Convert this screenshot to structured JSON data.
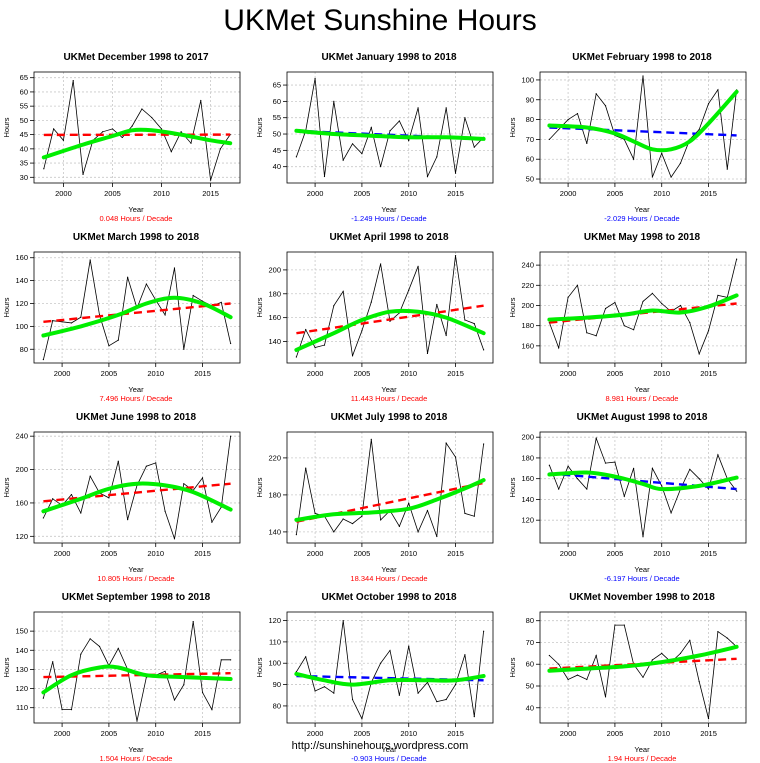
{
  "page_title": "UKMet Sunshine Hours",
  "footer_url": "http://sunshinehours.wordpress.com",
  "colors": {
    "data_line": "#000000",
    "trend_up": "#ff0000",
    "trend_down": "#0000ff",
    "smooth": "#00ee00",
    "grid": "#c8c8c8"
  },
  "chart_data": [
    {
      "type": "line",
      "title": "UKMet December 1998 to 2017",
      "xlabel": "Year",
      "ylabel": "Hours",
      "trend_label": "0.048 Hours / Decade",
      "trend_direction": "up",
      "xlim": [
        1997,
        2018
      ],
      "xticks": [
        2000,
        2005,
        2010,
        2015
      ],
      "ylim": [
        28,
        67
      ],
      "yticks": [
        30,
        35,
        40,
        45,
        50,
        55,
        60,
        65
      ],
      "x": [
        1998,
        1999,
        2000,
        2001,
        2002,
        2003,
        2004,
        2005,
        2006,
        2007,
        2008,
        2009,
        2010,
        2011,
        2012,
        2013,
        2014,
        2015,
        2016,
        2017
      ],
      "values": [
        33,
        47,
        43,
        64,
        31,
        43,
        46,
        47,
        44,
        48,
        54,
        51,
        47,
        39,
        46,
        42,
        57,
        29,
        40,
        45
      ],
      "trend": [
        [
          1998,
          44.9
        ],
        [
          2017,
          45.0
        ]
      ],
      "smooth": [
        [
          1998,
          37
        ],
        [
          2002,
          41.5
        ],
        [
          2005,
          44.5
        ],
        [
          2007,
          46.5
        ],
        [
          2009,
          46.5
        ],
        [
          2012,
          45
        ],
        [
          2015,
          43
        ],
        [
          2017,
          42
        ]
      ]
    },
    {
      "type": "line",
      "title": "UKMet January 1998 to 2018",
      "xlabel": "Year",
      "ylabel": "Hours",
      "trend_label": "-1.249 Hours / Decade",
      "trend_direction": "down",
      "xlim": [
        1997,
        2019
      ],
      "xticks": [
        2000,
        2005,
        2010,
        2015
      ],
      "ylim": [
        35,
        69
      ],
      "yticks": [
        40,
        45,
        50,
        55,
        60,
        65
      ],
      "x": [
        1998,
        1999,
        2000,
        2001,
        2002,
        2003,
        2004,
        2005,
        2006,
        2007,
        2008,
        2009,
        2010,
        2011,
        2012,
        2013,
        2014,
        2015,
        2016,
        2017,
        2018
      ],
      "values": [
        43,
        51,
        67,
        37,
        60,
        42,
        47,
        44,
        52,
        40,
        51,
        54,
        48,
        58,
        37,
        43,
        58,
        38,
        55,
        46,
        49
      ],
      "trend": [
        [
          1998,
          51
        ],
        [
          2018,
          48.5
        ]
      ],
      "smooth": [
        [
          1998,
          51
        ],
        [
          2002,
          50
        ],
        [
          2006,
          49.5
        ],
        [
          2010,
          49
        ],
        [
          2014,
          49
        ],
        [
          2018,
          48.5
        ]
      ]
    },
    {
      "type": "line",
      "title": "UKMet February 1998 to 2018",
      "xlabel": "Year",
      "ylabel": "Hours",
      "trend_label": "-2.029 Hours / Decade",
      "trend_direction": "down",
      "xlim": [
        1997,
        2019
      ],
      "xticks": [
        2000,
        2005,
        2010,
        2015
      ],
      "ylim": [
        48,
        104
      ],
      "yticks": [
        50,
        60,
        70,
        80,
        90,
        100
      ],
      "x": [
        1998,
        1999,
        2000,
        2001,
        2002,
        2003,
        2004,
        2005,
        2006,
        2007,
        2008,
        2009,
        2010,
        2011,
        2012,
        2013,
        2014,
        2015,
        2016,
        2017,
        2018
      ],
      "values": [
        70,
        75,
        80,
        83,
        68,
        93,
        87,
        72,
        70,
        60,
        102,
        51,
        63,
        51,
        58,
        70,
        75,
        88,
        95,
        55,
        95
      ],
      "trend": [
        [
          1998,
          76
        ],
        [
          2018,
          72
        ]
      ],
      "smooth": [
        [
          1998,
          77
        ],
        [
          2002,
          76
        ],
        [
          2005,
          73
        ],
        [
          2007,
          69
        ],
        [
          2009,
          65
        ],
        [
          2011,
          65
        ],
        [
          2013,
          69
        ],
        [
          2015,
          78
        ],
        [
          2018,
          94
        ]
      ]
    },
    {
      "type": "line",
      "title": "UKMet March 1998 to 2018",
      "xlabel": "Year",
      "ylabel": "Hours",
      "trend_label": "7.496 Hours / Decade",
      "trend_direction": "up",
      "xlim": [
        1997,
        2019
      ],
      "xticks": [
        2000,
        2005,
        2010,
        2015
      ],
      "ylim": [
        68,
        165
      ],
      "yticks": [
        80,
        100,
        120,
        140,
        160
      ],
      "x": [
        1998,
        1999,
        2000,
        2001,
        2002,
        2003,
        2004,
        2005,
        2006,
        2007,
        2008,
        2009,
        2010,
        2011,
        2012,
        2013,
        2014,
        2015,
        2016,
        2017,
        2018
      ],
      "values": [
        71,
        105,
        104,
        103,
        108,
        158,
        110,
        83,
        88,
        143,
        116,
        137,
        123,
        110,
        151,
        80,
        127,
        122,
        118,
        121,
        85
      ],
      "trend": [
        [
          1998,
          104
        ],
        [
          2018,
          120
        ]
      ],
      "smooth": [
        [
          1998,
          92
        ],
        [
          2002,
          100
        ],
        [
          2006,
          110
        ],
        [
          2009,
          120
        ],
        [
          2012,
          125
        ],
        [
          2015,
          120
        ],
        [
          2018,
          108
        ]
      ]
    },
    {
      "type": "line",
      "title": "UKMet April 1998 to 2018",
      "xlabel": "Year",
      "ylabel": "Hours",
      "trend_label": "11.443 Hours / Decade",
      "trend_direction": "up",
      "xlim": [
        1997,
        2019
      ],
      "xticks": [
        2000,
        2005,
        2010,
        2015
      ],
      "ylim": [
        122,
        215
      ],
      "yticks": [
        140,
        160,
        180,
        200
      ],
      "x": [
        1998,
        1999,
        2000,
        2001,
        2002,
        2003,
        2004,
        2005,
        2006,
        2007,
        2008,
        2009,
        2010,
        2011,
        2012,
        2013,
        2014,
        2015,
        2016,
        2017,
        2018
      ],
      "values": [
        127,
        150,
        135,
        137,
        170,
        182,
        128,
        149,
        173,
        205,
        157,
        164,
        183,
        203,
        130,
        171,
        145,
        212,
        158,
        155,
        133
      ],
      "trend": [
        [
          1998,
          147
        ],
        [
          2018,
          170
        ]
      ],
      "smooth": [
        [
          1998,
          133
        ],
        [
          2002,
          147
        ],
        [
          2005,
          158
        ],
        [
          2008,
          165
        ],
        [
          2011,
          165
        ],
        [
          2014,
          160
        ],
        [
          2018,
          147
        ]
      ]
    },
    {
      "type": "line",
      "title": "UKMet May 1998 to 2018",
      "xlabel": "Year",
      "ylabel": "Hours",
      "trend_label": "8.981 Hours / Decade",
      "trend_direction": "up",
      "xlim": [
        1997,
        2019
      ],
      "xticks": [
        2000,
        2005,
        2010,
        2015
      ],
      "ylim": [
        143,
        253
      ],
      "yticks": [
        160,
        180,
        200,
        220,
        240
      ],
      "x": [
        1998,
        1999,
        2000,
        2001,
        2002,
        2003,
        2004,
        2005,
        2006,
        2007,
        2008,
        2009,
        2010,
        2011,
        2012,
        2013,
        2014,
        2015,
        2016,
        2017,
        2018
      ],
      "values": [
        183,
        158,
        208,
        220,
        173,
        170,
        197,
        203,
        180,
        176,
        204,
        212,
        202,
        194,
        200,
        183,
        152,
        175,
        210,
        208,
        246
      ],
      "trend": [
        [
          1998,
          183
        ],
        [
          2018,
          202
        ]
      ],
      "smooth": [
        [
          1998,
          186
        ],
        [
          2002,
          188
        ],
        [
          2006,
          191
        ],
        [
          2009,
          195
        ],
        [
          2012,
          193
        ],
        [
          2015,
          199
        ],
        [
          2018,
          210
        ]
      ]
    },
    {
      "type": "line",
      "title": "UKMet June 1998 to 2018",
      "xlabel": "Year",
      "ylabel": "Hours",
      "trend_label": "10.805 Hours / Decade",
      "trend_direction": "up",
      "xlim": [
        1997,
        2019
      ],
      "xticks": [
        2000,
        2005,
        2010,
        2015
      ],
      "ylim": [
        112,
        245
      ],
      "yticks": [
        120,
        160,
        200,
        240
      ],
      "x": [
        1998,
        1999,
        2000,
        2001,
        2002,
        2003,
        2004,
        2005,
        2006,
        2007,
        2008,
        2009,
        2010,
        2011,
        2012,
        2013,
        2014,
        2015,
        2016,
        2017,
        2018
      ],
      "values": [
        142,
        165,
        157,
        170,
        148,
        192,
        172,
        166,
        210,
        140,
        181,
        204,
        208,
        150,
        117,
        183,
        175,
        190,
        137,
        155,
        240
      ],
      "trend": [
        [
          1998,
          162
        ],
        [
          2018,
          183
        ]
      ],
      "smooth": [
        [
          1998,
          150
        ],
        [
          2002,
          165
        ],
        [
          2005,
          177
        ],
        [
          2008,
          183
        ],
        [
          2011,
          181
        ],
        [
          2014,
          173
        ],
        [
          2018,
          152
        ]
      ]
    },
    {
      "type": "line",
      "title": "UKMet July 1998 to 2018",
      "xlabel": "Year",
      "ylabel": "Hours",
      "trend_label": "18.344 Hours / Decade",
      "trend_direction": "up",
      "xlim": [
        1997,
        2019
      ],
      "xticks": [
        2000,
        2005,
        2010,
        2015
      ],
      "ylim": [
        128,
        248
      ],
      "yticks": [
        140,
        180,
        220
      ],
      "x": [
        1998,
        1999,
        2000,
        2001,
        2002,
        2003,
        2004,
        2005,
        2006,
        2007,
        2008,
        2009,
        2010,
        2011,
        2012,
        2013,
        2014,
        2015,
        2016,
        2017,
        2018
      ],
      "values": [
        137,
        209,
        160,
        157,
        140,
        154,
        149,
        157,
        240,
        153,
        163,
        146,
        171,
        140,
        163,
        135,
        236,
        221,
        160,
        157,
        235
      ],
      "trend": [
        [
          1998,
          151
        ],
        [
          2018,
          193
        ]
      ],
      "smooth": [
        [
          1998,
          153
        ],
        [
          2002,
          159
        ],
        [
          2006,
          161
        ],
        [
          2010,
          165
        ],
        [
          2013,
          175
        ],
        [
          2016,
          187
        ],
        [
          2018,
          196
        ]
      ]
    },
    {
      "type": "line",
      "title": "UKMet August 1998 to 2018",
      "xlabel": "Year",
      "ylabel": "Hours",
      "trend_label": "-6.197 Hours / Decade",
      "trend_direction": "down",
      "xlim": [
        1997,
        2019
      ],
      "xticks": [
        2000,
        2005,
        2010,
        2015
      ],
      "ylim": [
        98,
        205
      ],
      "yticks": [
        120,
        140,
        160,
        180,
        200
      ],
      "x": [
        1998,
        1999,
        2000,
        2001,
        2002,
        2003,
        2004,
        2005,
        2006,
        2007,
        2008,
        2009,
        2010,
        2011,
        2012,
        2013,
        2014,
        2015,
        2016,
        2017,
        2018
      ],
      "values": [
        173,
        150,
        172,
        160,
        150,
        199,
        175,
        176,
        143,
        170,
        104,
        170,
        153,
        127,
        150,
        169,
        160,
        150,
        183,
        160,
        148
      ],
      "trend": [
        [
          1998,
          165
        ],
        [
          2018,
          150
        ]
      ],
      "smooth": [
        [
          1998,
          164
        ],
        [
          2002,
          166
        ],
        [
          2005,
          162
        ],
        [
          2008,
          155
        ],
        [
          2010,
          150
        ],
        [
          2014,
          153
        ],
        [
          2018,
          161
        ]
      ]
    },
    {
      "type": "line",
      "title": "UKMet September 1998 to 2018",
      "xlabel": "Year",
      "ylabel": "Hours",
      "trend_label": "1.504 Hours / Decade",
      "trend_direction": "up",
      "xlim": [
        1997,
        2019
      ],
      "xticks": [
        2000,
        2005,
        2010,
        2015
      ],
      "ylim": [
        102,
        160
      ],
      "yticks": [
        110,
        120,
        130,
        140,
        150
      ],
      "x": [
        1998,
        1999,
        2000,
        2001,
        2002,
        2003,
        2004,
        2005,
        2006,
        2007,
        2008,
        2009,
        2010,
        2011,
        2012,
        2013,
        2014,
        2015,
        2016,
        2017,
        2018
      ],
      "values": [
        115,
        134,
        109,
        109,
        138,
        146,
        142,
        132,
        141,
        130,
        103,
        126,
        127,
        129,
        114,
        122,
        155,
        118,
        109,
        135,
        135
      ],
      "trend": [
        [
          1998,
          126
        ],
        [
          2018,
          128
        ]
      ],
      "smooth": [
        [
          1998,
          118
        ],
        [
          2001,
          127
        ],
        [
          2004,
          131
        ],
        [
          2006,
          131
        ],
        [
          2009,
          127
        ],
        [
          2013,
          126
        ],
        [
          2018,
          125
        ]
      ]
    },
    {
      "type": "line",
      "title": "UKMet October 1998 to 2018",
      "xlabel": "Year",
      "ylabel": "Hours",
      "trend_label": "-0.903 Hours / Decade",
      "trend_direction": "down",
      "xlim": [
        1997,
        2019
      ],
      "xticks": [
        2000,
        2005,
        2010,
        2015
      ],
      "ylim": [
        72,
        124
      ],
      "yticks": [
        80,
        90,
        100,
        110,
        120
      ],
      "x": [
        1998,
        1999,
        2000,
        2001,
        2002,
        2003,
        2004,
        2005,
        2006,
        2007,
        2008,
        2009,
        2010,
        2011,
        2012,
        2013,
        2014,
        2015,
        2016,
        2017,
        2018
      ],
      "values": [
        96,
        103,
        87,
        89,
        86,
        120,
        83,
        74,
        91,
        100,
        106,
        85,
        108,
        86,
        91,
        82,
        83,
        90,
        104,
        75,
        115
      ],
      "trend": [
        [
          1998,
          94
        ],
        [
          2018,
          92
        ]
      ],
      "smooth": [
        [
          1998,
          95
        ],
        [
          2001,
          92
        ],
        [
          2004,
          90
        ],
        [
          2008,
          92
        ],
        [
          2012,
          92
        ],
        [
          2015,
          92
        ],
        [
          2018,
          94
        ]
      ]
    },
    {
      "type": "line",
      "title": "UKMet November 1998 to 2018",
      "xlabel": "Year",
      "ylabel": "Hours",
      "trend_label": "1.94 Hours / Decade",
      "trend_direction": "up",
      "xlim": [
        1997,
        2019
      ],
      "xticks": [
        2000,
        2005,
        2010,
        2015
      ],
      "ylim": [
        33,
        84
      ],
      "yticks": [
        40,
        50,
        60,
        70,
        80
      ],
      "x": [
        1998,
        1999,
        2000,
        2001,
        2002,
        2003,
        2004,
        2005,
        2006,
        2007,
        2008,
        2009,
        2010,
        2011,
        2012,
        2013,
        2014,
        2015,
        2016,
        2017,
        2018
      ],
      "values": [
        64,
        60,
        53,
        55,
        53,
        64,
        45,
        78,
        78,
        60,
        54,
        62,
        65,
        61,
        65,
        71,
        52,
        35,
        75,
        72,
        68
      ],
      "trend": [
        [
          1998,
          58
        ],
        [
          2018,
          62.5
        ]
      ],
      "smooth": [
        [
          1998,
          57
        ],
        [
          2002,
          58
        ],
        [
          2006,
          59
        ],
        [
          2010,
          61
        ],
        [
          2014,
          64
        ],
        [
          2018,
          68
        ]
      ]
    }
  ]
}
